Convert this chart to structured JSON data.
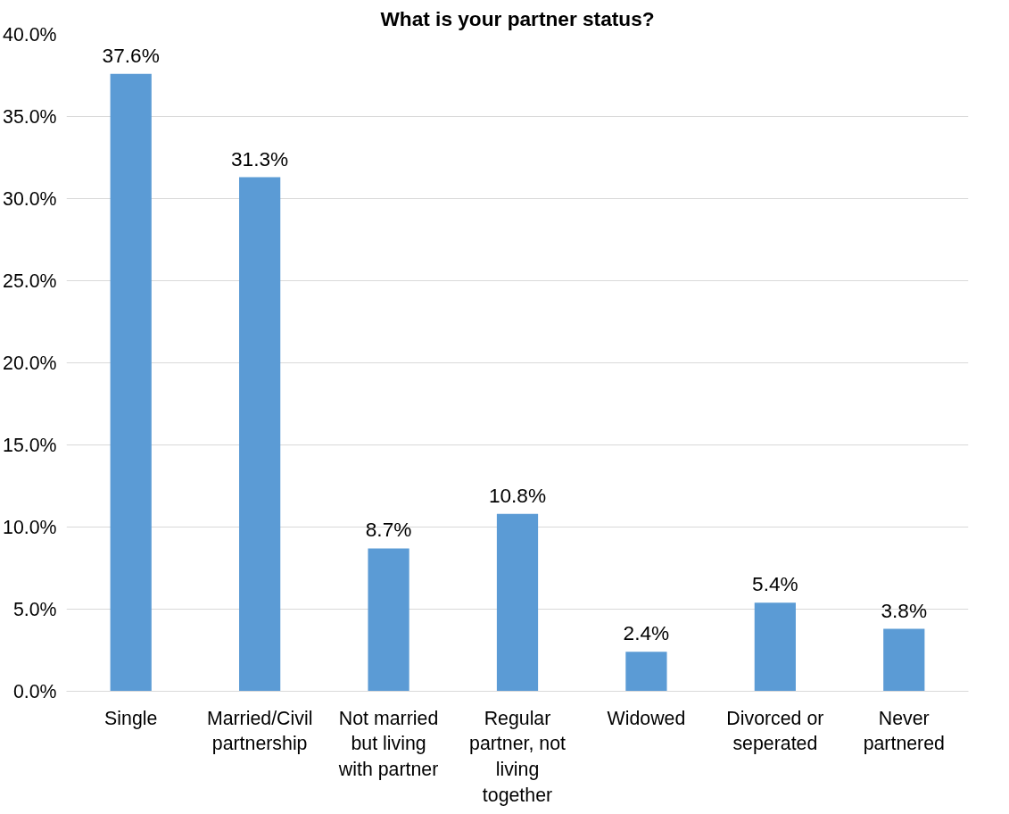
{
  "chart_data": {
    "type": "bar",
    "title": "What is your partner status?",
    "categories": [
      "Single",
      "Married/Civil partnership",
      "Not married but living with partner",
      "Regular partner, not living together",
      "Widowed",
      "Divorced or seperated",
      "Never partnered"
    ],
    "values": [
      37.6,
      31.3,
      8.7,
      10.8,
      2.4,
      5.4,
      3.8
    ],
    "value_labels": [
      "37.6%",
      "31.3%",
      "8.7%",
      "10.8%",
      "2.4%",
      "5.4%",
      "3.8%"
    ],
    "color": "#5b9bd5",
    "ylim": [
      0,
      40
    ],
    "yticks": [
      {
        "value": 0,
        "label": "0.0%"
      },
      {
        "value": 5,
        "label": "5.0%"
      },
      {
        "value": 10,
        "label": "10.0%"
      },
      {
        "value": 15,
        "label": "15.0%"
      },
      {
        "value": 20,
        "label": "20.0%"
      },
      {
        "value": 25,
        "label": "25.0%"
      },
      {
        "value": 30,
        "label": "30.0%"
      },
      {
        "value": 35,
        "label": "35.0%"
      },
      {
        "value": 40,
        "label": "40.0%"
      }
    ],
    "grid": "y"
  }
}
